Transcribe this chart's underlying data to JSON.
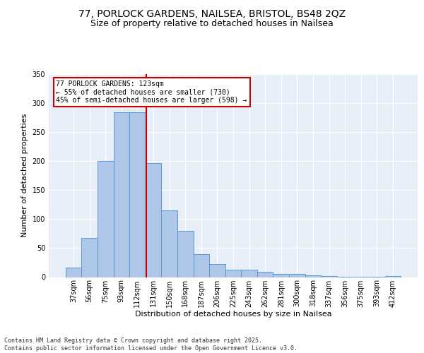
{
  "title_line1": "77, PORLOCK GARDENS, NAILSEA, BRISTOL, BS48 2QZ",
  "title_line2": "Size of property relative to detached houses in Nailsea",
  "xlabel": "Distribution of detached houses by size in Nailsea",
  "ylabel": "Number of detached properties",
  "categories": [
    "37sqm",
    "56sqm",
    "75sqm",
    "93sqm",
    "112sqm",
    "131sqm",
    "150sqm",
    "168sqm",
    "187sqm",
    "206sqm",
    "225sqm",
    "243sqm",
    "262sqm",
    "281sqm",
    "300sqm",
    "318sqm",
    "337sqm",
    "356sqm",
    "375sqm",
    "393sqm",
    "412sqm"
  ],
  "values": [
    17,
    68,
    200,
    284,
    284,
    197,
    115,
    80,
    40,
    23,
    13,
    13,
    9,
    5,
    5,
    3,
    2,
    1,
    1,
    1,
    2
  ],
  "bar_color": "#aec6e8",
  "bar_edge_color": "#5b9bd5",
  "property_value": 123,
  "annotation_text": "77 PORLOCK GARDENS: 123sqm\n← 55% of detached houses are smaller (730)\n45% of semi-detached houses are larger (598) →",
  "annotation_box_color": "#ffffff",
  "annotation_box_edge_color": "#cc0000",
  "annotation_text_color": "#000000",
  "property_line_color": "#cc0000",
  "ylim": [
    0,
    350
  ],
  "yticks": [
    0,
    50,
    100,
    150,
    200,
    250,
    300,
    350
  ],
  "bg_color": "#e8eef8",
  "footer": "Contains HM Land Registry data © Crown copyright and database right 2025.\nContains public sector information licensed under the Open Government Licence v3.0.",
  "title_fontsize": 10,
  "subtitle_fontsize": 9,
  "axis_label_fontsize": 8,
  "tick_fontsize": 7,
  "footer_fontsize": 6
}
